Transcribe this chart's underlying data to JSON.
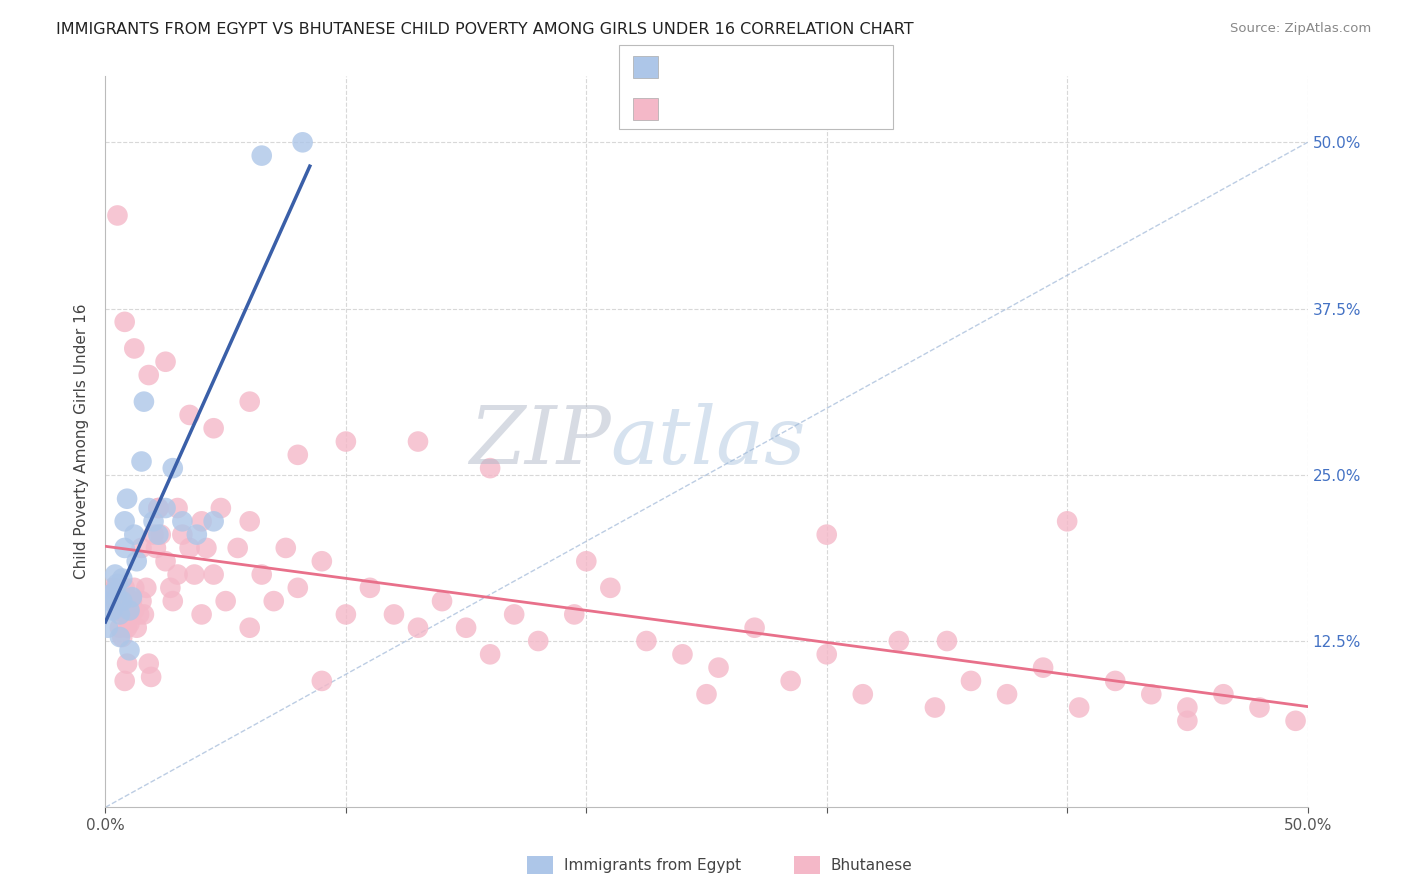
{
  "title": "IMMIGRANTS FROM EGYPT VS BHUTANESE CHILD POVERTY AMONG GIRLS UNDER 16 CORRELATION CHART",
  "source": "Source: ZipAtlas.com",
  "ylabel": "Child Poverty Among Girls Under 16",
  "xmin": 0.0,
  "xmax": 0.5,
  "ymin": 0.0,
  "ymax": 0.55,
  "color_egypt": "#adc6e8",
  "color_bhutan": "#f4b8c8",
  "color_egypt_line": "#3a5fa8",
  "color_bhutan_line": "#e8708a",
  "color_diag": "#a0b8d8",
  "r_egypt_color": "#3060c0",
  "r_bhutan_color": "#d03050",
  "background": "#ffffff",
  "grid_color": "#d8d8d8",
  "egypt_x": [
    0.001,
    0.002,
    0.002,
    0.003,
    0.004,
    0.004,
    0.005,
    0.005,
    0.006,
    0.006,
    0.007,
    0.007,
    0.008,
    0.008,
    0.009,
    0.01,
    0.01,
    0.011,
    0.012,
    0.013,
    0.015,
    0.016,
    0.018,
    0.02,
    0.022,
    0.025,
    0.028,
    0.032,
    0.038,
    0.045,
    0.065,
    0.082
  ],
  "egypt_y": [
    0.135,
    0.155,
    0.16,
    0.148,
    0.162,
    0.175,
    0.158,
    0.168,
    0.128,
    0.145,
    0.155,
    0.172,
    0.195,
    0.215,
    0.232,
    0.118,
    0.148,
    0.158,
    0.205,
    0.185,
    0.26,
    0.305,
    0.225,
    0.215,
    0.205,
    0.225,
    0.255,
    0.215,
    0.205,
    0.215,
    0.49,
    0.5
  ],
  "bhutan_x": [
    0.003,
    0.004,
    0.004,
    0.005,
    0.005,
    0.006,
    0.006,
    0.007,
    0.007,
    0.008,
    0.008,
    0.009,
    0.009,
    0.01,
    0.01,
    0.011,
    0.012,
    0.012,
    0.013,
    0.014,
    0.015,
    0.016,
    0.017,
    0.018,
    0.019,
    0.02,
    0.021,
    0.022,
    0.023,
    0.025,
    0.027,
    0.028,
    0.03,
    0.032,
    0.035,
    0.037,
    0.04,
    0.042,
    0.045,
    0.048,
    0.05,
    0.055,
    0.06,
    0.065,
    0.07,
    0.075,
    0.08,
    0.09,
    0.1,
    0.11,
    0.12,
    0.13,
    0.14,
    0.15,
    0.16,
    0.17,
    0.18,
    0.195,
    0.21,
    0.225,
    0.24,
    0.255,
    0.27,
    0.285,
    0.3,
    0.315,
    0.33,
    0.345,
    0.36,
    0.375,
    0.39,
    0.405,
    0.42,
    0.435,
    0.45,
    0.465,
    0.48,
    0.495,
    0.005,
    0.008,
    0.012,
    0.018,
    0.025,
    0.035,
    0.045,
    0.06,
    0.08,
    0.1,
    0.13,
    0.16,
    0.2,
    0.25,
    0.3,
    0.35,
    0.4,
    0.45,
    0.015,
    0.022,
    0.03,
    0.04,
    0.06,
    0.09
  ],
  "bhutan_y": [
    0.165,
    0.155,
    0.165,
    0.148,
    0.162,
    0.135,
    0.148,
    0.128,
    0.155,
    0.095,
    0.165,
    0.108,
    0.135,
    0.148,
    0.138,
    0.155,
    0.148,
    0.165,
    0.135,
    0.145,
    0.155,
    0.145,
    0.165,
    0.108,
    0.098,
    0.205,
    0.195,
    0.225,
    0.205,
    0.185,
    0.165,
    0.155,
    0.225,
    0.205,
    0.195,
    0.175,
    0.215,
    0.195,
    0.175,
    0.225,
    0.155,
    0.195,
    0.215,
    0.175,
    0.155,
    0.195,
    0.165,
    0.185,
    0.145,
    0.165,
    0.145,
    0.135,
    0.155,
    0.135,
    0.115,
    0.145,
    0.125,
    0.145,
    0.165,
    0.125,
    0.115,
    0.105,
    0.135,
    0.095,
    0.115,
    0.085,
    0.125,
    0.075,
    0.095,
    0.085,
    0.105,
    0.075,
    0.095,
    0.085,
    0.065,
    0.085,
    0.075,
    0.065,
    0.445,
    0.365,
    0.345,
    0.325,
    0.335,
    0.295,
    0.285,
    0.305,
    0.265,
    0.275,
    0.275,
    0.255,
    0.185,
    0.085,
    0.205,
    0.125,
    0.215,
    0.075,
    0.195,
    0.225,
    0.175,
    0.145,
    0.135,
    0.095
  ]
}
